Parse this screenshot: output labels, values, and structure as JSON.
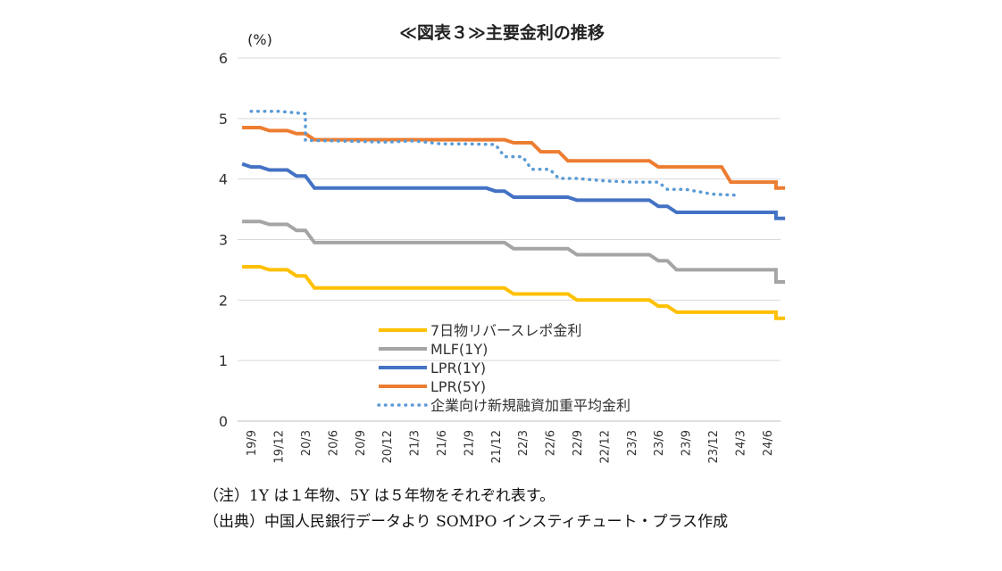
{
  "chart_data": {
    "type": "line",
    "title": "≪図表３≫主要金利の推移",
    "unit_label": "(%)",
    "ylim": [
      0,
      6
    ],
    "yticks": [
      0,
      1,
      2,
      3,
      4,
      5,
      6
    ],
    "grid": "horizontal",
    "legend_position": "center-inside",
    "x_tick_labels": [
      "19/9",
      "19/12",
      "20/3",
      "20/6",
      "20/9",
      "20/12",
      "21/3",
      "21/6",
      "21/9",
      "21/12",
      "22/3",
      "22/6",
      "22/9",
      "22/12",
      "23/3",
      "23/6",
      "23/9",
      "23/12",
      "24/3",
      "24/6"
    ],
    "series": [
      {
        "name": "7日物リバースレポ金利",
        "color": "#FFC000",
        "style": "solid",
        "points": [
          [
            "2019-08",
            2.55
          ],
          [
            "2019-10",
            2.55
          ],
          [
            "2019-11",
            2.5
          ],
          [
            "2020-01",
            2.5
          ],
          [
            "2020-02",
            2.4
          ],
          [
            "2020-03",
            2.4
          ],
          [
            "2020-04",
            2.2
          ],
          [
            "2022-01",
            2.2
          ],
          [
            "2022-02",
            2.1
          ],
          [
            "2022-08",
            2.1
          ],
          [
            "2022-09",
            2.0
          ],
          [
            "2023-05",
            2.0
          ],
          [
            "2023-06",
            1.9
          ],
          [
            "2023-07",
            1.9
          ],
          [
            "2023-08",
            1.8
          ],
          [
            "2024-07",
            1.8
          ],
          [
            "2024-07",
            1.7
          ],
          [
            "2024-08",
            1.7
          ]
        ]
      },
      {
        "name": "MLF(1Y)",
        "color": "#A5A5A5",
        "style": "solid",
        "points": [
          [
            "2019-08",
            3.3
          ],
          [
            "2019-10",
            3.3
          ],
          [
            "2019-11",
            3.25
          ],
          [
            "2020-01",
            3.25
          ],
          [
            "2020-02",
            3.15
          ],
          [
            "2020-03",
            3.15
          ],
          [
            "2020-04",
            2.95
          ],
          [
            "2022-01",
            2.95
          ],
          [
            "2022-02",
            2.85
          ],
          [
            "2022-08",
            2.85
          ],
          [
            "2022-09",
            2.75
          ],
          [
            "2023-05",
            2.75
          ],
          [
            "2023-06",
            2.65
          ],
          [
            "2023-07",
            2.65
          ],
          [
            "2023-08",
            2.5
          ],
          [
            "2024-07",
            2.5
          ],
          [
            "2024-07",
            2.3
          ],
          [
            "2024-08",
            2.3
          ]
        ]
      },
      {
        "name": "LPR(1Y)",
        "color": "#4472C4",
        "style": "solid",
        "points": [
          [
            "2019-08",
            4.25
          ],
          [
            "2019-09",
            4.2
          ],
          [
            "2019-10",
            4.2
          ],
          [
            "2019-11",
            4.15
          ],
          [
            "2020-01",
            4.15
          ],
          [
            "2020-02",
            4.05
          ],
          [
            "2020-03",
            4.05
          ],
          [
            "2020-04",
            3.85
          ],
          [
            "2021-11",
            3.85
          ],
          [
            "2021-12",
            3.8
          ],
          [
            "2022-01",
            3.8
          ],
          [
            "2022-02",
            3.7
          ],
          [
            "2022-08",
            3.7
          ],
          [
            "2022-09",
            3.65
          ],
          [
            "2023-05",
            3.65
          ],
          [
            "2023-06",
            3.55
          ],
          [
            "2023-07",
            3.55
          ],
          [
            "2023-08",
            3.45
          ],
          [
            "2024-07",
            3.45
          ],
          [
            "2024-07",
            3.35
          ],
          [
            "2024-08",
            3.35
          ]
        ]
      },
      {
        "name": "LPR(5Y)",
        "color": "#ED7D31",
        "style": "solid",
        "points": [
          [
            "2019-08",
            4.85
          ],
          [
            "2019-10",
            4.85
          ],
          [
            "2019-11",
            4.8
          ],
          [
            "2020-01",
            4.8
          ],
          [
            "2020-02",
            4.75
          ],
          [
            "2020-03",
            4.75
          ],
          [
            "2020-04",
            4.65
          ],
          [
            "2022-01",
            4.65
          ],
          [
            "2022-02",
            4.6
          ],
          [
            "2022-04",
            4.6
          ],
          [
            "2022-05",
            4.45
          ],
          [
            "2022-07",
            4.45
          ],
          [
            "2022-08",
            4.3
          ],
          [
            "2023-05",
            4.3
          ],
          [
            "2023-06",
            4.2
          ],
          [
            "2024-01",
            4.2
          ],
          [
            "2024-02",
            3.95
          ],
          [
            "2024-07",
            3.95
          ],
          [
            "2024-07",
            3.85
          ],
          [
            "2024-08",
            3.85
          ]
        ]
      },
      {
        "name": "企業向け新規融資加重平均金利",
        "color": "#5B9BD5",
        "style": "dotted",
        "points": [
          [
            "2019-09",
            5.12
          ],
          [
            "2019-12",
            5.12
          ],
          [
            "2020-03",
            5.08
          ],
          [
            "2020-03",
            4.64
          ],
          [
            "2020-06",
            4.63
          ],
          [
            "2020-09",
            4.62
          ],
          [
            "2020-12",
            4.61
          ],
          [
            "2021-03",
            4.63
          ],
          [
            "2021-06",
            4.58
          ],
          [
            "2021-09",
            4.58
          ],
          [
            "2021-12",
            4.57
          ],
          [
            "2022-01",
            4.37
          ],
          [
            "2022-03",
            4.37
          ],
          [
            "2022-04",
            4.16
          ],
          [
            "2022-06",
            4.16
          ],
          [
            "2022-07",
            4.01
          ],
          [
            "2022-09",
            4.01
          ],
          [
            "2022-12",
            3.97
          ],
          [
            "2023-03",
            3.95
          ],
          [
            "2023-06",
            3.95
          ],
          [
            "2023-07",
            3.83
          ],
          [
            "2023-09",
            3.83
          ],
          [
            "2023-12",
            3.75
          ],
          [
            "2024-03",
            3.73
          ]
        ]
      }
    ]
  },
  "notes": {
    "note1": "（注）1Y は１年物、5Y は５年物をそれぞれ表す。",
    "note2": "（出典）中国人民銀行データより SOMPO インスティチュート・プラス作成"
  }
}
